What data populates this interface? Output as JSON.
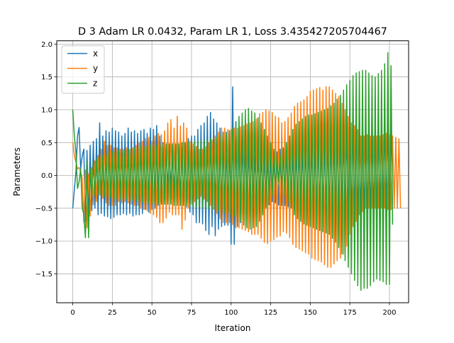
{
  "chart_data": {
    "type": "line",
    "title": "D 3 Adam LR 0.0432, Param LR 1, Loss 3.435427205704467",
    "xlabel": "Iteration",
    "ylabel": "Parameters",
    "xlim": [
      -10.1,
      212.1
    ],
    "ylim": [
      -1.94,
      2.05
    ],
    "xticks": [
      0,
      25,
      50,
      75,
      100,
      125,
      150,
      175,
      200
    ],
    "yticks": [
      -1.5,
      -1.0,
      -0.5,
      0.0,
      0.5,
      1.0,
      1.5,
      2.0
    ],
    "xtick_labels": [
      "0",
      "25",
      "50",
      "75",
      "100",
      "125",
      "150",
      "175",
      "200"
    ],
    "ytick_labels": [
      "−1.5",
      "−1.0",
      "−0.5",
      "0.0",
      "0.5",
      "1.0",
      "1.5",
      "2.0"
    ],
    "grid": true,
    "legend_position": "top-left",
    "x_start": 0,
    "x_step": 1,
    "series": [
      {
        "name": "x",
        "color": "#1f77b4",
        "values": [
          -0.5,
          -0.22,
          0.05,
          0.6,
          0.73,
          0.1,
          0.3,
          0.4,
          -0.7,
          0.38,
          -0.62,
          0.46,
          -0.54,
          0.52,
          -0.5,
          0.56,
          -0.6,
          0.8,
          -0.58,
          0.6,
          -0.62,
          0.68,
          -0.63,
          0.66,
          -0.66,
          0.72,
          -0.64,
          0.68,
          -0.6,
          0.66,
          -0.6,
          0.6,
          -0.58,
          0.64,
          -0.6,
          0.72,
          -0.58,
          0.66,
          -0.62,
          0.68,
          -0.6,
          0.64,
          -0.6,
          0.68,
          -0.58,
          0.7,
          -0.52,
          0.64,
          -0.56,
          0.72,
          -0.52,
          0.7,
          -0.5,
          0.76,
          -0.46,
          0.6,
          -0.4,
          0.5,
          -0.36,
          0.42,
          -0.22,
          0.38,
          -0.2,
          0.3,
          -0.26,
          0.3,
          -0.3,
          0.36,
          -0.34,
          0.4,
          -0.42,
          0.5,
          -0.48,
          0.56,
          -0.56,
          0.6,
          -0.6,
          0.6,
          -0.72,
          0.7,
          -0.72,
          0.76,
          -0.74,
          0.8,
          -0.84,
          0.9,
          -0.9,
          0.96,
          -0.78,
          0.86,
          -0.92,
          0.8,
          -0.82,
          0.72,
          -0.78,
          0.66,
          -0.76,
          0.66,
          -0.76,
          0.68,
          -1.05,
          1.35,
          -1.05,
          0.82,
          -0.78,
          0.72,
          -0.72,
          0.62,
          -0.6,
          0.52,
          -0.54,
          0.45,
          -0.48,
          0.4,
          -0.42,
          0.32,
          -0.38,
          0.3,
          -0.36,
          0.3,
          -0.4,
          0.3,
          -0.45,
          0.3,
          -0.45,
          0.3,
          -0.4,
          0.34,
          -0.42,
          0.36,
          -0.45,
          0.4,
          -0.46,
          0.42,
          -0.46,
          0.42,
          -0.48,
          0.4,
          -0.48,
          0.4,
          -0.52,
          0.42,
          -0.52,
          0.46,
          -0.56,
          0.46,
          -0.56,
          0.48,
          -0.58,
          0.52,
          -0.58,
          0.52,
          -0.6,
          0.52,
          -0.6,
          0.56,
          -0.6,
          0.56,
          -0.62,
          0.56,
          -0.62,
          0.6,
          -0.62,
          0.6,
          -0.62,
          0.62,
          -0.64,
          0.62,
          -0.64,
          0.64,
          -0.64,
          0.66,
          -0.66,
          0.8,
          -0.8,
          0.86,
          -0.8,
          0.9,
          -0.82,
          0.96,
          -0.82,
          0.9,
          -0.82,
          0.9,
          -0.78,
          0.82,
          -0.76,
          0.86,
          -0.74,
          0.8,
          -0.72,
          0.8,
          -0.72,
          0.8,
          -0.72,
          0.9,
          -0.72,
          0.9,
          -0.7,
          0.9,
          -0.7,
          0.88,
          -0.7
        ]
      },
      {
        "name": "y",
        "color": "#ff7f0e",
        "values": [
          0.5,
          0.3,
          0.2,
          0.1,
          0.12,
          0.05,
          -0.05,
          -0.72,
          0.08,
          -0.8,
          0.02,
          -0.62,
          0.12,
          -0.45,
          0.22,
          -0.4,
          0.3,
          -0.3,
          0.4,
          -0.35,
          0.52,
          -0.42,
          0.46,
          -0.46,
          0.46,
          -0.46,
          0.42,
          -0.46,
          0.42,
          -0.4,
          0.4,
          -0.42,
          0.4,
          -0.4,
          0.42,
          -0.42,
          0.4,
          -0.44,
          0.42,
          -0.46,
          0.46,
          -0.46,
          0.5,
          -0.5,
          0.52,
          -0.52,
          0.56,
          -0.54,
          0.58,
          -0.58,
          0.52,
          -0.6,
          0.6,
          -0.64,
          0.64,
          -0.72,
          0.62,
          -0.72,
          0.68,
          -0.65,
          0.8,
          -0.56,
          0.85,
          -0.6,
          0.72,
          -0.6,
          0.9,
          -0.6,
          0.75,
          -0.82,
          0.8,
          -0.68,
          0.72,
          -0.5,
          0.52,
          -0.44,
          0.48,
          -0.4,
          0.44,
          -0.36,
          0.4,
          -0.32,
          0.4,
          -0.36,
          0.44,
          -0.4,
          0.5,
          -0.46,
          0.54,
          -0.52,
          0.6,
          -0.58,
          0.66,
          -0.66,
          0.72,
          -0.72,
          0.72,
          -0.72,
          0.7,
          -0.72,
          0.7,
          -0.75,
          0.72,
          -0.8,
          0.72,
          -0.8,
          0.74,
          -0.82,
          0.76,
          -0.84,
          0.78,
          -0.86,
          0.8,
          -0.9,
          0.82,
          -0.9,
          0.86,
          -0.9,
          0.94,
          -0.96,
          0.96,
          -1.02,
          1.0,
          -1.04,
          0.98,
          -1.0,
          0.96,
          -0.98,
          0.9,
          -0.94,
          0.88,
          -0.92,
          0.8,
          -0.86,
          0.82,
          -0.88,
          0.88,
          -0.95,
          0.95,
          -1.05,
          1.05,
          -1.1,
          1.1,
          -1.12,
          1.12,
          -1.15,
          1.15,
          -1.18,
          1.2,
          -1.2,
          1.28,
          -1.26,
          1.3,
          -1.28,
          1.32,
          -1.3,
          1.34,
          -1.32,
          1.3,
          -1.36,
          1.35,
          -1.4,
          1.35,
          -1.4,
          1.3,
          -1.35,
          1.25,
          -1.3,
          1.2,
          -1.26,
          1.1,
          -1.2,
          1.0,
          -1.08,
          0.9,
          -0.9,
          0.8,
          -0.78,
          0.76,
          -0.7,
          0.7,
          -0.6,
          0.6,
          -0.55,
          0.6,
          -0.5,
          0.62,
          -0.5,
          0.6,
          -0.5,
          0.6,
          -0.5,
          0.6,
          -0.5,
          0.6,
          -0.5,
          0.62,
          -0.5,
          0.64,
          -0.52,
          0.62,
          -0.52,
          0.6,
          -0.5,
          0.58,
          -0.5,
          0.56,
          -0.5
        ]
      },
      {
        "name": "z",
        "color": "#2ca02c",
        "values": [
          1.0,
          0.6,
          0.35,
          -0.2,
          -0.1,
          0.1,
          -0.5,
          -0.6,
          -0.95,
          0.2,
          -0.95,
          0.1,
          -0.3,
          0.2,
          -0.3,
          0.25,
          -0.3,
          0.28,
          -0.32,
          0.3,
          -0.32,
          0.3,
          -0.34,
          0.36,
          -0.34,
          0.36,
          -0.36,
          0.36,
          -0.36,
          0.38,
          -0.36,
          0.38,
          -0.36,
          0.38,
          -0.36,
          0.4,
          -0.38,
          0.4,
          -0.38,
          0.42,
          -0.38,
          0.42,
          -0.4,
          0.44,
          -0.4,
          0.44,
          -0.42,
          0.44,
          -0.42,
          0.46,
          -0.42,
          0.46,
          -0.42,
          0.46,
          -0.44,
          0.46,
          -0.44,
          0.46,
          -0.44,
          0.48,
          -0.44,
          0.48,
          -0.44,
          0.48,
          -0.46,
          0.48,
          -0.46,
          0.48,
          -0.46,
          0.5,
          -0.46,
          0.5,
          -0.46,
          0.5,
          -0.46,
          0.5,
          -0.48,
          0.52,
          -0.48,
          0.52,
          -0.48,
          0.52,
          -0.5,
          0.54,
          -0.5,
          0.54,
          -0.5,
          0.56,
          -0.52,
          0.56,
          -0.52,
          0.58,
          -0.54,
          0.6,
          -0.54,
          0.62,
          -0.56,
          0.64,
          -0.58,
          0.68,
          -0.6,
          0.72,
          -0.62,
          0.8,
          -0.66,
          0.9,
          -0.7,
          0.95,
          -0.76,
          1.0,
          -0.8,
          1.02,
          -0.82,
          0.98,
          -0.8,
          0.95,
          -0.78,
          0.88,
          -0.7,
          0.8,
          -0.6,
          0.7,
          -0.5,
          0.6,
          -0.4,
          0.5,
          -0.3,
          0.4,
          -0.2,
          0.3,
          -0.1,
          0.3,
          -0.2,
          0.4,
          -0.3,
          0.5,
          -0.4,
          0.6,
          -0.5,
          0.7,
          -0.6,
          0.78,
          -0.66,
          0.82,
          -0.7,
          0.86,
          -0.74,
          0.9,
          -0.76,
          0.92,
          -0.78,
          0.92,
          -0.8,
          0.94,
          -0.82,
          0.96,
          -0.84,
          0.98,
          -0.86,
          1.0,
          -0.88,
          1.02,
          -0.9,
          1.06,
          -0.96,
          1.1,
          -1.02,
          1.16,
          -1.1,
          1.22,
          -1.2,
          1.3,
          -1.3,
          1.38,
          -1.4,
          1.45,
          -1.5,
          1.52,
          -1.6,
          1.56,
          -1.68,
          1.58,
          -1.75,
          1.6,
          -1.72,
          1.6,
          -1.72,
          1.56,
          -1.68,
          1.52,
          -1.62,
          1.5,
          -1.58,
          1.55,
          -1.6,
          1.6,
          -1.62,
          1.7,
          -1.66,
          1.87,
          -1.66,
          1.67,
          -0.75
        ]
      }
    ]
  }
}
